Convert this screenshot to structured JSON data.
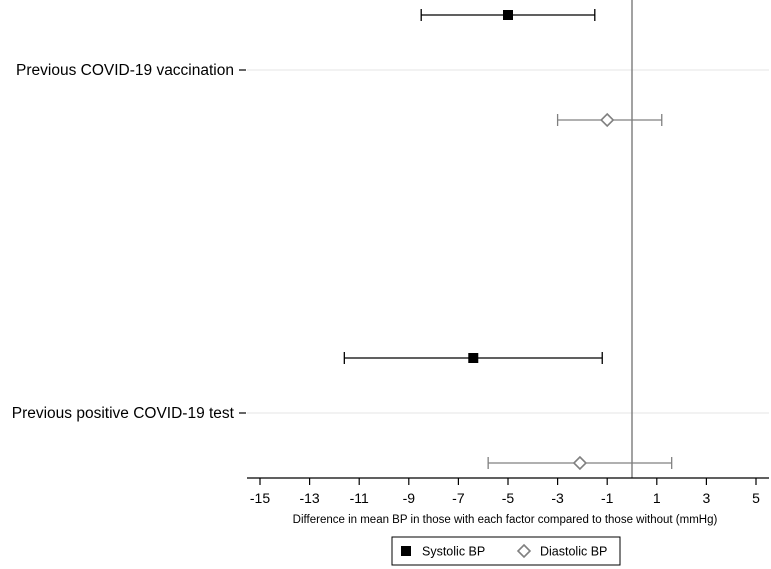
{
  "chart_data": {
    "type": "forest",
    "title": "",
    "xlabel": "Difference in mean BP in those with each factor compared to those without (mmHg)",
    "ylabel": "",
    "xlim": [
      -15.5,
      5.5
    ],
    "xticks": [
      -15,
      -13,
      -11,
      -9,
      -7,
      -5,
      -3,
      -1,
      1,
      3,
      5
    ],
    "xtick_labels": [
      "-15",
      "-13",
      "-11",
      "-9",
      "-7",
      "-5",
      "-3",
      "-1",
      "1",
      "3",
      "5"
    ],
    "reference_line": 0,
    "categories": [
      "Previous COVID-19 vaccination",
      "Previous positive COVID-19 test"
    ],
    "series": [
      {
        "name": "Systolic BP",
        "marker": "filled-square",
        "color": "#000000",
        "points": [
          {
            "category": "Previous COVID-19 vaccination",
            "estimate": -5.0,
            "lower": -8.5,
            "upper": -1.5
          },
          {
            "category": "Previous positive COVID-19 test",
            "estimate": -6.4,
            "lower": -11.6,
            "upper": -1.2
          }
        ]
      },
      {
        "name": "Diastolic BP",
        "marker": "hollow-diamond",
        "color": "#808080",
        "points": [
          {
            "category": "Previous COVID-19 vaccination",
            "estimate": -1.0,
            "lower": -3.0,
            "upper": 1.2
          },
          {
            "category": "Previous positive COVID-19 test",
            "estimate": -2.1,
            "lower": -5.8,
            "upper": 1.6
          }
        ]
      }
    ],
    "legend": {
      "position": "bottom",
      "entries": [
        "Systolic BP",
        "Diastolic BP"
      ]
    }
  }
}
